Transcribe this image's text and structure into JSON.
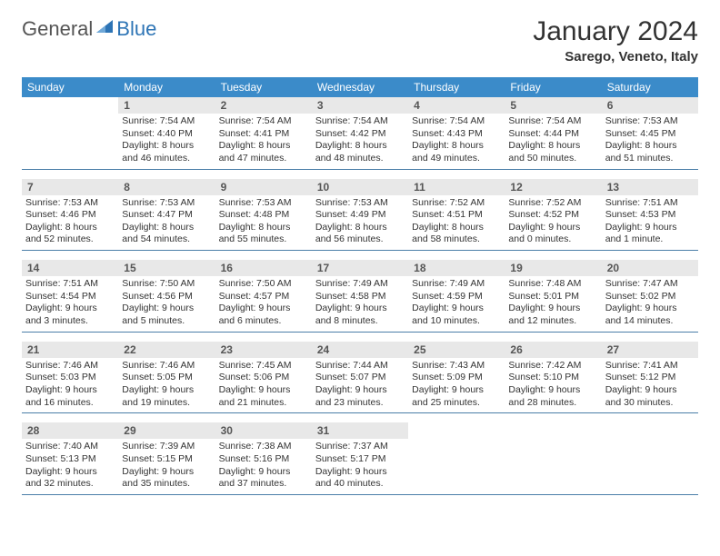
{
  "logo": {
    "general": "General",
    "blue": "Blue"
  },
  "title": "January 2024",
  "location": "Sarego, Veneto, Italy",
  "colors": {
    "header_bg": "#3b8bc9",
    "header_text": "#ffffff",
    "daynum_bg": "#e8e8e8",
    "daynum_text": "#555555",
    "border": "#4a7ea8",
    "logo_blue": "#2d74b5"
  },
  "weekdays": [
    "Sunday",
    "Monday",
    "Tuesday",
    "Wednesday",
    "Thursday",
    "Friday",
    "Saturday"
  ],
  "weeks": [
    [
      null,
      {
        "n": "1",
        "sr": "7:54 AM",
        "ss": "4:40 PM",
        "dl": "8 hours and 46 minutes."
      },
      {
        "n": "2",
        "sr": "7:54 AM",
        "ss": "4:41 PM",
        "dl": "8 hours and 47 minutes."
      },
      {
        "n": "3",
        "sr": "7:54 AM",
        "ss": "4:42 PM",
        "dl": "8 hours and 48 minutes."
      },
      {
        "n": "4",
        "sr": "7:54 AM",
        "ss": "4:43 PM",
        "dl": "8 hours and 49 minutes."
      },
      {
        "n": "5",
        "sr": "7:54 AM",
        "ss": "4:44 PM",
        "dl": "8 hours and 50 minutes."
      },
      {
        "n": "6",
        "sr": "7:53 AM",
        "ss": "4:45 PM",
        "dl": "8 hours and 51 minutes."
      }
    ],
    [
      {
        "n": "7",
        "sr": "7:53 AM",
        "ss": "4:46 PM",
        "dl": "8 hours and 52 minutes."
      },
      {
        "n": "8",
        "sr": "7:53 AM",
        "ss": "4:47 PM",
        "dl": "8 hours and 54 minutes."
      },
      {
        "n": "9",
        "sr": "7:53 AM",
        "ss": "4:48 PM",
        "dl": "8 hours and 55 minutes."
      },
      {
        "n": "10",
        "sr": "7:53 AM",
        "ss": "4:49 PM",
        "dl": "8 hours and 56 minutes."
      },
      {
        "n": "11",
        "sr": "7:52 AM",
        "ss": "4:51 PM",
        "dl": "8 hours and 58 minutes."
      },
      {
        "n": "12",
        "sr": "7:52 AM",
        "ss": "4:52 PM",
        "dl": "9 hours and 0 minutes."
      },
      {
        "n": "13",
        "sr": "7:51 AM",
        "ss": "4:53 PM",
        "dl": "9 hours and 1 minute."
      }
    ],
    [
      {
        "n": "14",
        "sr": "7:51 AM",
        "ss": "4:54 PM",
        "dl": "9 hours and 3 minutes."
      },
      {
        "n": "15",
        "sr": "7:50 AM",
        "ss": "4:56 PM",
        "dl": "9 hours and 5 minutes."
      },
      {
        "n": "16",
        "sr": "7:50 AM",
        "ss": "4:57 PM",
        "dl": "9 hours and 6 minutes."
      },
      {
        "n": "17",
        "sr": "7:49 AM",
        "ss": "4:58 PM",
        "dl": "9 hours and 8 minutes."
      },
      {
        "n": "18",
        "sr": "7:49 AM",
        "ss": "4:59 PM",
        "dl": "9 hours and 10 minutes."
      },
      {
        "n": "19",
        "sr": "7:48 AM",
        "ss": "5:01 PM",
        "dl": "9 hours and 12 minutes."
      },
      {
        "n": "20",
        "sr": "7:47 AM",
        "ss": "5:02 PM",
        "dl": "9 hours and 14 minutes."
      }
    ],
    [
      {
        "n": "21",
        "sr": "7:46 AM",
        "ss": "5:03 PM",
        "dl": "9 hours and 16 minutes."
      },
      {
        "n": "22",
        "sr": "7:46 AM",
        "ss": "5:05 PM",
        "dl": "9 hours and 19 minutes."
      },
      {
        "n": "23",
        "sr": "7:45 AM",
        "ss": "5:06 PM",
        "dl": "9 hours and 21 minutes."
      },
      {
        "n": "24",
        "sr": "7:44 AM",
        "ss": "5:07 PM",
        "dl": "9 hours and 23 minutes."
      },
      {
        "n": "25",
        "sr": "7:43 AM",
        "ss": "5:09 PM",
        "dl": "9 hours and 25 minutes."
      },
      {
        "n": "26",
        "sr": "7:42 AM",
        "ss": "5:10 PM",
        "dl": "9 hours and 28 minutes."
      },
      {
        "n": "27",
        "sr": "7:41 AM",
        "ss": "5:12 PM",
        "dl": "9 hours and 30 minutes."
      }
    ],
    [
      {
        "n": "28",
        "sr": "7:40 AM",
        "ss": "5:13 PM",
        "dl": "9 hours and 32 minutes."
      },
      {
        "n": "29",
        "sr": "7:39 AM",
        "ss": "5:15 PM",
        "dl": "9 hours and 35 minutes."
      },
      {
        "n": "30",
        "sr": "7:38 AM",
        "ss": "5:16 PM",
        "dl": "9 hours and 37 minutes."
      },
      {
        "n": "31",
        "sr": "7:37 AM",
        "ss": "5:17 PM",
        "dl": "9 hours and 40 minutes."
      },
      null,
      null,
      null
    ]
  ],
  "labels": {
    "sunrise": "Sunrise:",
    "sunset": "Sunset:",
    "daylight": "Daylight:"
  }
}
